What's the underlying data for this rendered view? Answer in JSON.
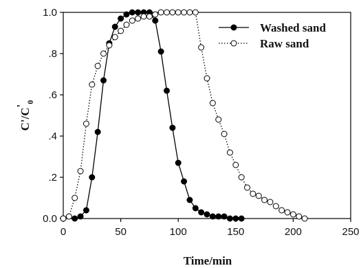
{
  "chart_data": {
    "type": "line",
    "title": "",
    "xlabel": "Time/min",
    "ylabel_main": "C'/C",
    "ylabel_sub": "0",
    "ylabel_sup": "'",
    "xlim": [
      0,
      250
    ],
    "ylim": [
      0,
      1.0
    ],
    "x_ticks": [
      0,
      50,
      100,
      150,
      200,
      250
    ],
    "x_tick_labels": [
      "0",
      "50",
      "100",
      "150",
      "200",
      "250"
    ],
    "y_ticks": [
      0,
      0.2,
      0.4,
      0.6,
      0.8,
      1.0
    ],
    "y_tick_labels": [
      "0.0",
      ".2",
      ".4",
      ".6",
      ".8",
      "1.0"
    ],
    "grid": false,
    "legend_position": "top-right",
    "series": [
      {
        "name": "Washed sand",
        "marker": "filled-circle",
        "line_style": "solid",
        "color": "#000000",
        "x": [
          0,
          10,
          15,
          20,
          25,
          30,
          35,
          40,
          45,
          50,
          55,
          60,
          65,
          70,
          75,
          80,
          85,
          90,
          95,
          100,
          105,
          110,
          115,
          120,
          125,
          130,
          135,
          140,
          145,
          150,
          155
        ],
        "y": [
          0.0,
          0.0,
          0.01,
          0.04,
          0.2,
          0.42,
          0.67,
          0.85,
          0.93,
          0.97,
          0.99,
          1.0,
          1.0,
          1.0,
          1.0,
          0.96,
          0.81,
          0.62,
          0.44,
          0.27,
          0.18,
          0.09,
          0.05,
          0.03,
          0.02,
          0.01,
          0.01,
          0.01,
          0.0,
          0.0,
          0.0
        ]
      },
      {
        "name": "Raw sand",
        "marker": "open-circle",
        "line_style": "dotted",
        "color": "#000000",
        "x": [
          0,
          5,
          10,
          15,
          20,
          25,
          30,
          35,
          40,
          45,
          50,
          55,
          60,
          65,
          70,
          75,
          80,
          85,
          90,
          95,
          100,
          105,
          110,
          115,
          120,
          125,
          130,
          135,
          140,
          145,
          150,
          155,
          160,
          165,
          170,
          175,
          180,
          185,
          190,
          195,
          200,
          205,
          210
        ],
        "y": [
          0.0,
          0.01,
          0.1,
          0.23,
          0.46,
          0.65,
          0.74,
          0.8,
          0.84,
          0.88,
          0.91,
          0.94,
          0.96,
          0.97,
          0.98,
          0.98,
          0.99,
          1.0,
          1.0,
          1.0,
          1.0,
          1.0,
          1.0,
          1.0,
          0.83,
          0.68,
          0.56,
          0.48,
          0.41,
          0.32,
          0.26,
          0.2,
          0.15,
          0.12,
          0.11,
          0.09,
          0.08,
          0.06,
          0.04,
          0.03,
          0.02,
          0.01,
          0.0
        ]
      }
    ]
  }
}
